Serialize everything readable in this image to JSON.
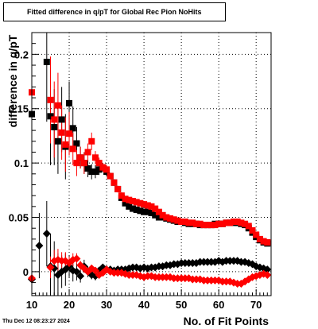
{
  "title": "Fitted difference in q/pT for Global Rec Pion NoHits",
  "ylabel": "difference in q/pT",
  "xlabel": "No. of Fit Points",
  "datestamp": "Thu Dec 12 08:23:27 2024",
  "chart_data": {
    "type": "scatter",
    "title": "Fitted difference in q/pT for Global Rec Pion NoHits",
    "xlabel": "No. of Fit Points",
    "ylabel": "difference in q/pT",
    "xlim": [
      10,
      74
    ],
    "ylim": [
      -0.022,
      0.22
    ],
    "x_ticks": [
      10,
      20,
      30,
      40,
      50,
      60,
      70
    ],
    "y_ticks": [
      0,
      0.05,
      0.1,
      0.15,
      0.2
    ],
    "y_tick_labels": [
      "0",
      "0.05",
      "0.1",
      "0.15",
      "0.2"
    ],
    "grid": true,
    "legend": false,
    "series": [
      {
        "marker": "square",
        "color": "#000000",
        "x": [
          10,
          14,
          15,
          16,
          17,
          18,
          19,
          20,
          21,
          22,
          23,
          24,
          25,
          26,
          27,
          28,
          29,
          30,
          31,
          32,
          33,
          34,
          35,
          36,
          37,
          38,
          39,
          40,
          41,
          42,
          43,
          44,
          45,
          46,
          47,
          48,
          49,
          50,
          51,
          52,
          53,
          54,
          55,
          56,
          57,
          58,
          59,
          60,
          61,
          62,
          63,
          64,
          65,
          66,
          67,
          68,
          69,
          70,
          71,
          72,
          73
        ],
        "y": [
          0.145,
          0.193,
          0.143,
          0.133,
          0.12,
          0.14,
          0.115,
          0.155,
          0.132,
          0.118,
          0.105,
          0.1,
          0.095,
          0.092,
          0.092,
          0.094,
          0.096,
          0.092,
          0.088,
          0.082,
          0.076,
          0.068,
          0.063,
          0.06,
          0.058,
          0.057,
          0.056,
          0.055,
          0.055,
          0.054,
          0.052,
          0.05,
          0.05,
          0.049,
          0.048,
          0.047,
          0.046,
          0.046,
          0.045,
          0.044,
          0.044,
          0.044,
          0.043,
          0.043,
          0.043,
          0.043,
          0.044,
          0.044,
          0.044,
          0.045,
          0.045,
          0.045,
          0.045,
          0.044,
          0.043,
          0.04,
          0.036,
          0.032,
          0.029,
          0.027,
          0.026
        ],
        "yerr": [
          0.03,
          0.055,
          0.045,
          0.035,
          0.03,
          0.03,
          0.03,
          0.02,
          0.02,
          0.015,
          0.01,
          0.01,
          0.008,
          0.007,
          0.006,
          0.005,
          0.004,
          0.004,
          0.003,
          0.003,
          0.003,
          0.003,
          0.002,
          0.002,
          0.002,
          0.002,
          0.002,
          0.002,
          0.002,
          0.002,
          0.002,
          0.002,
          0.002,
          0.002,
          0.002,
          0.002,
          0.002,
          0.002,
          0.002,
          0.002,
          0.002,
          0.002,
          0.002,
          0.002,
          0.002,
          0.002,
          0.002,
          0.002,
          0.002,
          0.002,
          0.002,
          0.002,
          0.002,
          0.002,
          0.002,
          0.002,
          0.002,
          0.002,
          0.002,
          0.002,
          0.002
        ]
      },
      {
        "marker": "square",
        "color": "#ff0000",
        "x": [
          10,
          15,
          16,
          17,
          18,
          19,
          20,
          21,
          22,
          23,
          24,
          25,
          26,
          27,
          28,
          29,
          30,
          31,
          32,
          33,
          34,
          35,
          36,
          37,
          38,
          39,
          40,
          41,
          42,
          43,
          44,
          45,
          46,
          47,
          48,
          49,
          50,
          51,
          52,
          53,
          54,
          55,
          56,
          57,
          58,
          59,
          60,
          61,
          62,
          63,
          64,
          65,
          66,
          67,
          68,
          69,
          70,
          71,
          72,
          73
        ],
        "y": [
          0.165,
          0.158,
          0.14,
          0.153,
          0.128,
          0.117,
          0.127,
          0.113,
          0.1,
          0.105,
          0.1,
          0.11,
          0.12,
          0.105,
          0.1,
          0.096,
          0.094,
          0.088,
          0.082,
          0.076,
          0.07,
          0.067,
          0.066,
          0.065,
          0.064,
          0.063,
          0.062,
          0.061,
          0.06,
          0.058,
          0.055,
          0.052,
          0.05,
          0.049,
          0.048,
          0.047,
          0.046,
          0.046,
          0.045,
          0.045,
          0.044,
          0.044,
          0.043,
          0.043,
          0.043,
          0.043,
          0.044,
          0.044,
          0.045,
          0.045,
          0.046,
          0.046,
          0.045,
          0.044,
          0.042,
          0.038,
          0.034,
          0.03,
          0.028,
          0.027
        ],
        "yerr": [
          0.03,
          0.04,
          0.035,
          0.03,
          0.025,
          0.025,
          0.02,
          0.015,
          0.012,
          0.01,
          0.01,
          0.008,
          0.008,
          0.006,
          0.005,
          0.004,
          0.004,
          0.003,
          0.003,
          0.003,
          0.003,
          0.002,
          0.002,
          0.002,
          0.002,
          0.002,
          0.002,
          0.002,
          0.002,
          0.002,
          0.002,
          0.002,
          0.002,
          0.002,
          0.002,
          0.002,
          0.002,
          0.002,
          0.002,
          0.002,
          0.002,
          0.002,
          0.002,
          0.002,
          0.002,
          0.002,
          0.002,
          0.002,
          0.002,
          0.002,
          0.002,
          0.002,
          0.002,
          0.002,
          0.002,
          0.002,
          0.002,
          0.002,
          0.002,
          0.002
        ]
      },
      {
        "marker": "diamond",
        "color": "#000000",
        "x": [
          10,
          12,
          14,
          15,
          16,
          17,
          18,
          19,
          20,
          21,
          22,
          23,
          24,
          25,
          26,
          27,
          28,
          29,
          30,
          31,
          32,
          33,
          34,
          35,
          36,
          37,
          38,
          39,
          40,
          41,
          42,
          43,
          44,
          45,
          46,
          47,
          48,
          49,
          50,
          51,
          52,
          53,
          54,
          55,
          56,
          57,
          58,
          59,
          60,
          61,
          62,
          63,
          64,
          65,
          66,
          67,
          68,
          69,
          70,
          71,
          72,
          73
        ],
        "y": [
          -0.007,
          0.024,
          0.035,
          0.005,
          0.003,
          -0.003,
          0.0,
          0.002,
          0.005,
          0.001,
          0.0,
          -0.004,
          0.005,
          0.0,
          -0.003,
          -0.004,
          0.001,
          0.004,
          0.002,
          0.002,
          0.001,
          0.002,
          0.002,
          0.002,
          0.003,
          0.004,
          0.004,
          0.003,
          0.004,
          0.003,
          0.004,
          0.004,
          0.005,
          0.005,
          0.006,
          0.006,
          0.007,
          0.007,
          0.008,
          0.008,
          0.008,
          0.008,
          0.008,
          0.009,
          0.009,
          0.009,
          0.009,
          0.009,
          0.01,
          0.009,
          0.01,
          0.01,
          0.01,
          0.01,
          0.009,
          0.009,
          0.008,
          0.007,
          0.005,
          0.004,
          0.003,
          0.002
        ],
        "yerr": [
          0.025,
          0.03,
          0.03,
          0.03,
          0.025,
          0.02,
          0.015,
          0.015,
          0.01,
          0.01,
          0.008,
          0.006,
          0.006,
          0.005,
          0.004,
          0.004,
          0.003,
          0.003,
          0.003,
          0.002,
          0.002,
          0.002,
          0.002,
          0.002,
          0.002,
          0.002,
          0.002,
          0.002,
          0.002,
          0.002,
          0.002,
          0.002,
          0.002,
          0.002,
          0.002,
          0.002,
          0.002,
          0.002,
          0.002,
          0.002,
          0.002,
          0.002,
          0.002,
          0.002,
          0.002,
          0.002,
          0.002,
          0.002,
          0.002,
          0.002,
          0.002,
          0.002,
          0.002,
          0.002,
          0.002,
          0.002,
          0.002,
          0.002,
          0.002,
          0.002,
          0.002,
          0.002
        ]
      },
      {
        "marker": "diamond",
        "color": "#ff0000",
        "x": [
          10,
          15,
          16,
          17,
          18,
          19,
          20,
          21,
          22,
          23,
          24,
          25,
          26,
          27,
          28,
          29,
          30,
          31,
          32,
          33,
          34,
          35,
          36,
          37,
          38,
          39,
          40,
          41,
          42,
          43,
          44,
          45,
          46,
          47,
          48,
          49,
          50,
          51,
          52,
          53,
          54,
          55,
          56,
          57,
          58,
          59,
          60,
          61,
          62,
          63,
          64,
          65,
          66,
          67,
          68,
          69,
          70,
          71,
          72,
          73
        ],
        "y": [
          -0.006,
          0.004,
          0.01,
          0.011,
          0.01,
          0.01,
          0.008,
          0.011,
          0.012,
          0.006,
          0.003,
          0.0,
          0.003,
          0.001,
          -0.003,
          -0.001,
          0.002,
          0.0,
          -0.001,
          -0.001,
          -0.001,
          -0.002,
          -0.003,
          -0.003,
          -0.003,
          -0.004,
          -0.005,
          -0.004,
          -0.004,
          -0.005,
          -0.005,
          -0.005,
          -0.005,
          -0.005,
          -0.006,
          -0.006,
          -0.006,
          -0.006,
          -0.006,
          -0.007,
          -0.007,
          -0.007,
          -0.008,
          -0.008,
          -0.008,
          -0.008,
          -0.008,
          -0.009,
          -0.009,
          -0.009,
          -0.01,
          -0.011,
          -0.011,
          -0.009,
          -0.007,
          -0.005,
          -0.004,
          -0.003,
          -0.002,
          -0.003
        ],
        "yerr": [
          0.02,
          0.01,
          0.01,
          0.01,
          0.008,
          0.008,
          0.006,
          0.006,
          0.005,
          0.004,
          0.004,
          0.003,
          0.003,
          0.003,
          0.002,
          0.002,
          0.002,
          0.002,
          0.002,
          0.002,
          0.002,
          0.002,
          0.002,
          0.002,
          0.002,
          0.002,
          0.002,
          0.002,
          0.002,
          0.002,
          0.002,
          0.002,
          0.002,
          0.002,
          0.002,
          0.002,
          0.002,
          0.002,
          0.002,
          0.002,
          0.002,
          0.002,
          0.002,
          0.002,
          0.002,
          0.002,
          0.002,
          0.002,
          0.002,
          0.002,
          0.002,
          0.002,
          0.002,
          0.002,
          0.002,
          0.002,
          0.002,
          0.002,
          0.002,
          0.002
        ]
      }
    ]
  }
}
